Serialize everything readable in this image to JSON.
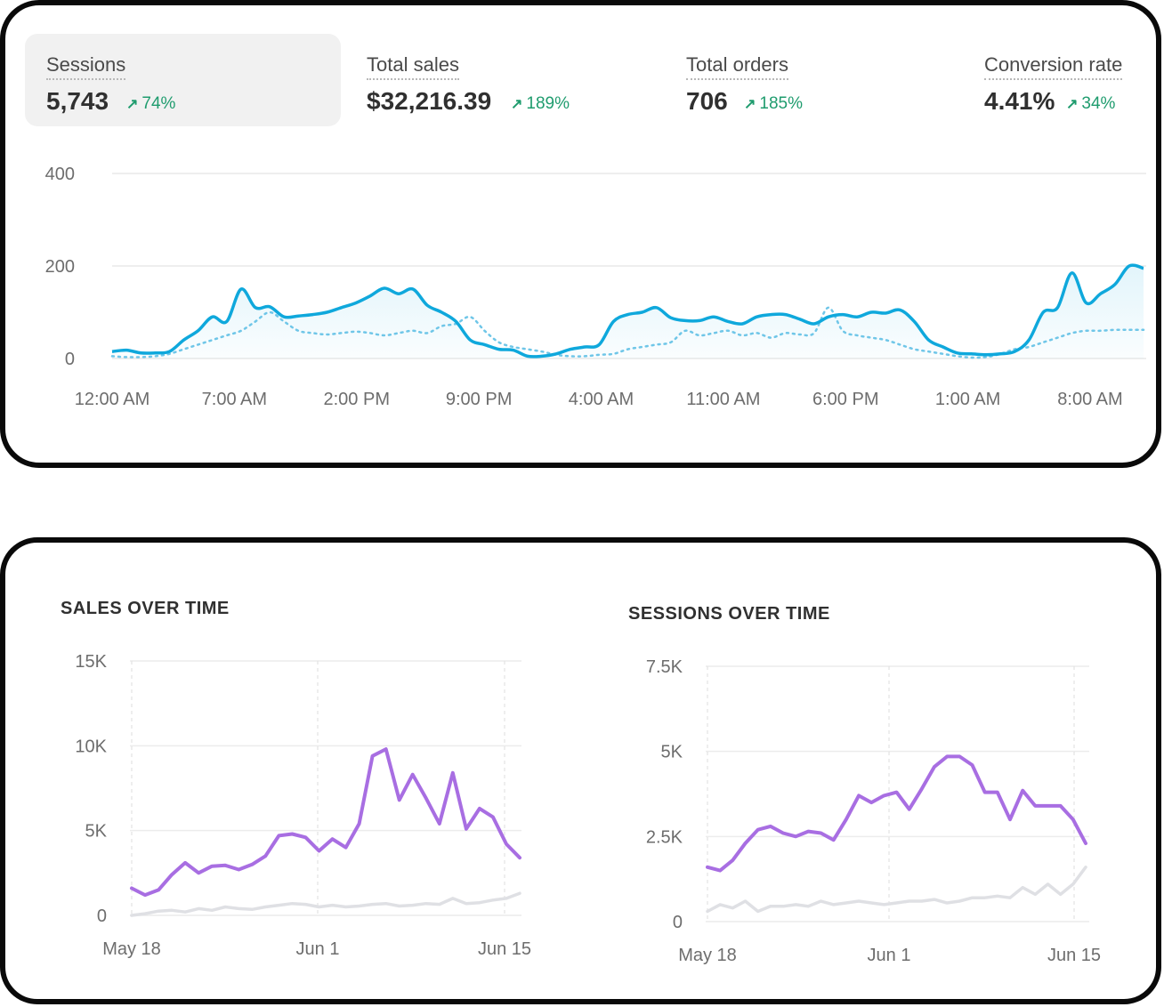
{
  "metrics": [
    {
      "label": "Sessions",
      "value": "5,743",
      "delta": "74%",
      "arrow": "↗"
    },
    {
      "label": "Total sales",
      "value": "$32,216.39",
      "delta": "189%",
      "arrow": "↗"
    },
    {
      "label": "Total orders",
      "value": "706",
      "delta": "185%",
      "arrow": "↗"
    },
    {
      "label": "Conversion rate",
      "value": "4.41%",
      "delta": "34%",
      "arrow": "↗"
    }
  ],
  "colors": {
    "primary_line": "#0fa8dc",
    "comparison_line": "#6fc6e8",
    "sales_line": "#a86ee2",
    "prior_line": "#dfe0e4",
    "positive": "#1f9c6e",
    "grid": "#e8e8e8"
  },
  "chart_data": [
    {
      "type": "line",
      "title": "",
      "xlabel": "",
      "ylabel": "",
      "ylim": [
        0,
        400
      ],
      "yticks": [
        "400",
        "200",
        "0"
      ],
      "xticks": [
        "12:00 AM",
        "7:00 AM",
        "2:00 PM",
        "9:00 PM",
        "4:00 AM",
        "11:00 AM",
        "6:00 PM",
        "1:00 AM",
        "8:00 AM"
      ],
      "series": [
        {
          "name": "",
          "style": "solid-area",
          "values": [
            15,
            18,
            12,
            12,
            15,
            40,
            60,
            90,
            80,
            150,
            110,
            112,
            90,
            92,
            95,
            100,
            110,
            120,
            135,
            152,
            140,
            150,
            115,
            100,
            80,
            40,
            30,
            20,
            18,
            5,
            5,
            10,
            20,
            25,
            30,
            80,
            95,
            100,
            110,
            88,
            82,
            82,
            90,
            80,
            75,
            90,
            95,
            95,
            85,
            75,
            90,
            95,
            90,
            100,
            98,
            105,
            80,
            40,
            25,
            12,
            10,
            8,
            10,
            15,
            40,
            100,
            110,
            185,
            120,
            140,
            160,
            200,
            195
          ]
        },
        {
          "name": "",
          "style": "dotted",
          "values": [
            5,
            3,
            3,
            5,
            10,
            20,
            30,
            40,
            50,
            60,
            80,
            100,
            80,
            60,
            55,
            52,
            55,
            58,
            55,
            50,
            55,
            60,
            55,
            70,
            75,
            90,
            60,
            35,
            25,
            20,
            15,
            8,
            5,
            5,
            8,
            10,
            20,
            25,
            30,
            35,
            60,
            50,
            55,
            60,
            50,
            55,
            45,
            55,
            52,
            55,
            110,
            60,
            50,
            45,
            40,
            30,
            20,
            15,
            10,
            5,
            2,
            3,
            10,
            20,
            25,
            35,
            45,
            55,
            60,
            60,
            62,
            62,
            62
          ]
        }
      ]
    },
    {
      "type": "line",
      "title": "SALES OVER TIME",
      "xlabel": "",
      "ylabel": "",
      "ylim": [
        0,
        15000
      ],
      "yticks": [
        "15K",
        "10K",
        "5K",
        "0"
      ],
      "xticks": [
        "May 18",
        "Jun 1",
        "Jun 15"
      ],
      "series": [
        {
          "name": "",
          "color": "#a86ee2",
          "values": [
            1600,
            1200,
            1500,
            2400,
            3100,
            2500,
            2900,
            2950,
            2700,
            3000,
            3500,
            4700,
            4800,
            4600,
            3800,
            4500,
            4000,
            5400,
            9400,
            9800,
            6800,
            8300,
            6900,
            5400,
            8400,
            5100,
            6300,
            5800,
            4200,
            3400
          ]
        },
        {
          "name": "",
          "color": "#dfe0e4",
          "values": [
            0,
            100,
            250,
            300,
            200,
            400,
            300,
            500,
            400,
            350,
            500,
            600,
            700,
            650,
            500,
            600,
            500,
            550,
            650,
            700,
            550,
            600,
            700,
            650,
            1000,
            700,
            750,
            900,
            1000,
            1300
          ]
        }
      ]
    },
    {
      "type": "line",
      "title": "SESSIONS OVER TIME",
      "xlabel": "",
      "ylabel": "",
      "ylim": [
        0,
        7500
      ],
      "yticks": [
        "7.5K",
        "5K",
        "2.5K",
        "0"
      ],
      "xticks": [
        "May 18",
        "Jun 1",
        "Jun 15"
      ],
      "series": [
        {
          "name": "",
          "color": "#a86ee2",
          "values": [
            1600,
            1500,
            1800,
            2300,
            2700,
            2800,
            2600,
            2500,
            2650,
            2600,
            2400,
            3000,
            3700,
            3500,
            3700,
            3800,
            3300,
            3900,
            4550,
            4850,
            4850,
            4600,
            3800,
            3800,
            3000,
            3850,
            3400,
            3400,
            3400,
            3000,
            2300
          ]
        },
        {
          "name": "",
          "color": "#dfe0e4",
          "values": [
            300,
            500,
            400,
            600,
            300,
            450,
            450,
            500,
            450,
            600,
            500,
            550,
            600,
            550,
            500,
            550,
            600,
            600,
            650,
            550,
            600,
            700,
            700,
            750,
            700,
            1000,
            800,
            1100,
            800,
            1100,
            1600
          ]
        }
      ]
    }
  ]
}
